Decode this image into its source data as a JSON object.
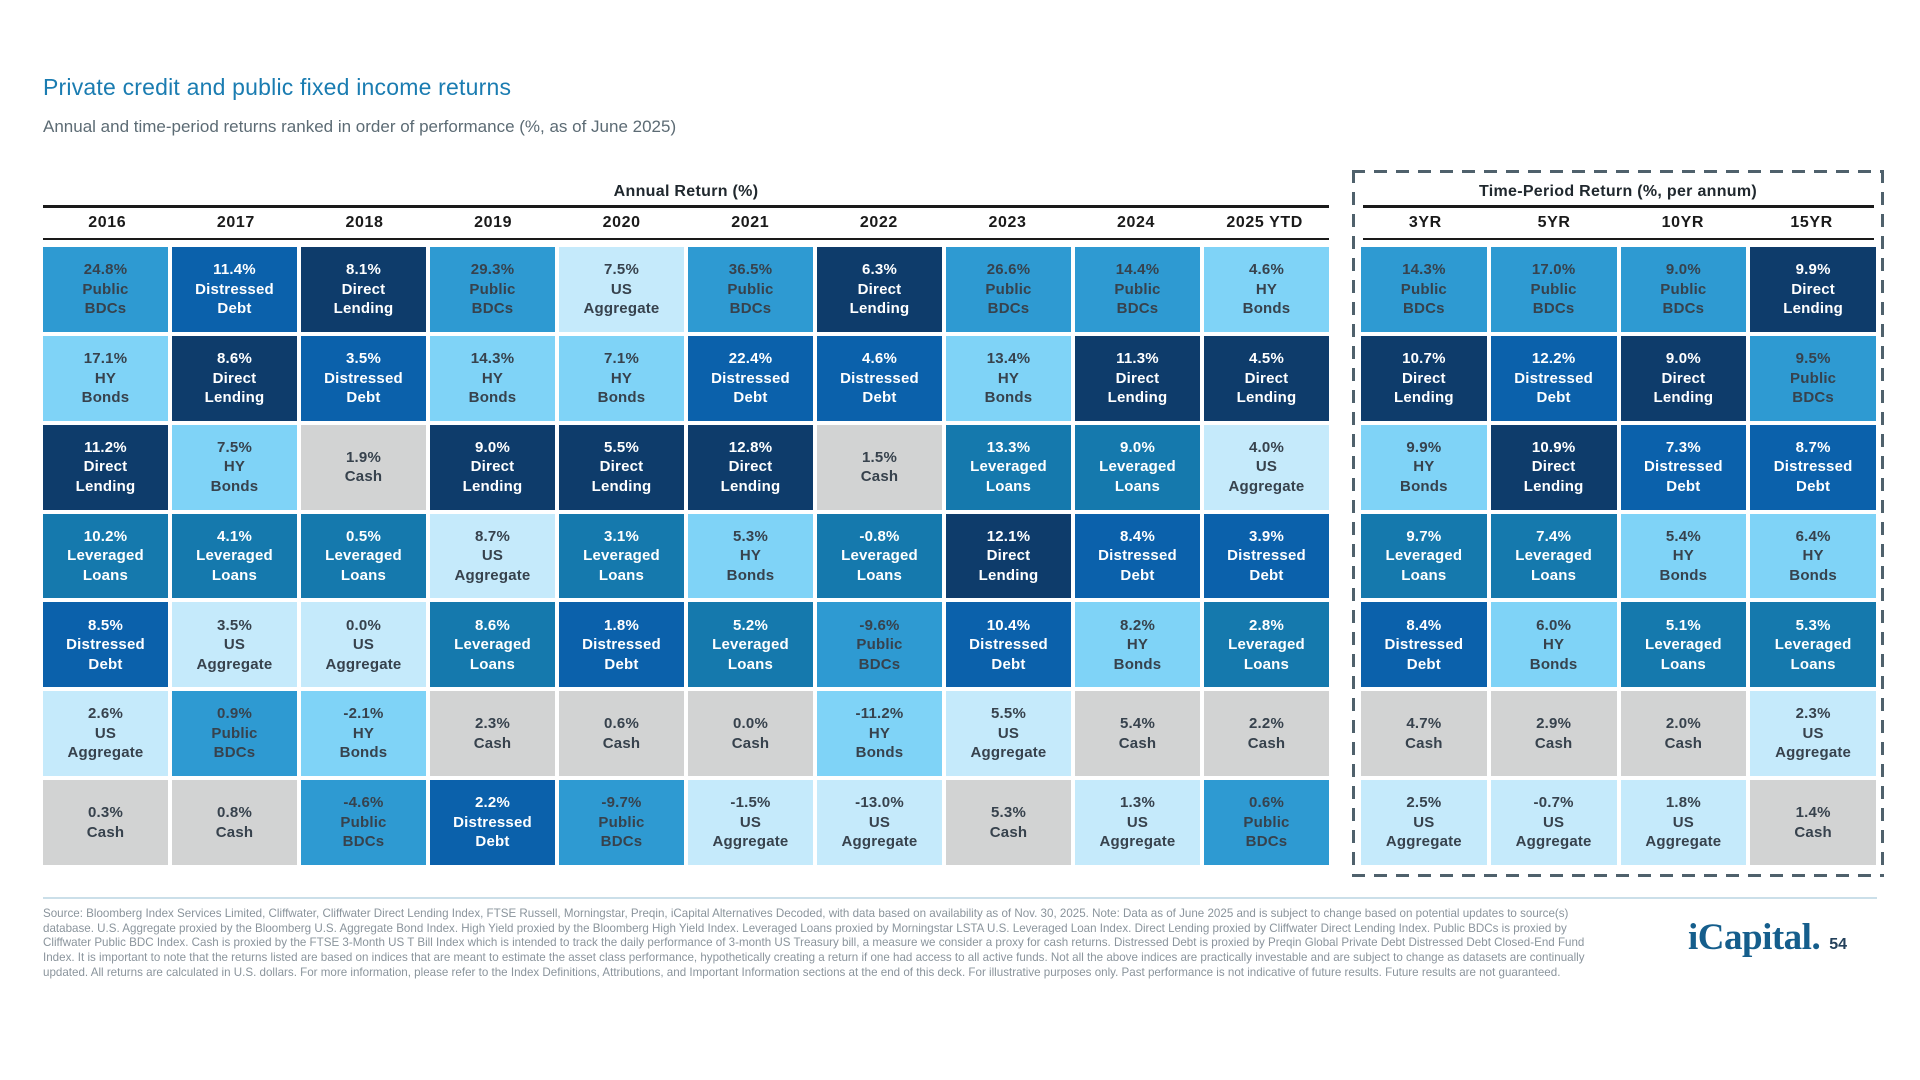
{
  "page": {
    "title": "Private credit and public fixed income returns",
    "subtitle": "Annual and time-period returns ranked in order of performance (%, as of June 2025)",
    "logo_text": "iCapital.",
    "page_number": "54",
    "footnote_lines": [
      "Source: Bloomberg Index Services Limited, Cliffwater, Cliffwater Direct Lending Index, FTSE Russell, Morningstar, Preqin, iCapital Alternatives Decoded, with data based on availability as of Nov. 30, 2025. Note: Data as of June 2025 and is subject to change based on potential updates to source(s)",
      "database. U.S. Aggregate proxied by the Bloomberg U.S. Aggregate Bond Index. High Yield proxied by the Bloomberg High Yield Index. Leveraged Loans proxied by Morningstar LSTA U.S. Leveraged Loan Index. Direct Lending proxied by Cliffwater Direct Lending Index. Public BDCs is proxied by",
      "Cliffwater Public BDC Index. Cash is proxied by the FTSE 3-Month US T Bill Index which is intended to track the daily performance of 3-month US Treasury bill, a measure we consider a proxy for cash returns. Distressed Debt is proxied by Preqin Global Private Debt Distressed Debt Closed-End Fund",
      "Index. It is important to note that the returns listed are based on indices that are meant to estimate the asset class performance, hypothetically creating a return if one had access to all active funds. Not all the above indices are practically investable and are subject to change as datasets are continually",
      "updated. All returns are calculated in U.S. dollars. For more information, please refer to the Index Definitions, Attributions, and Important Information sections at the end of this deck. For illustrative purposes only. Past performance is not indicative of future results. Future results are not guaranteed."
    ]
  },
  "chart_data": {
    "type": "table",
    "subtype": "ranked-return-quilt",
    "unit": "percent",
    "as_of": "June 2025",
    "asset_colors": {
      "public-bdcs": {
        "label": "Public BDCs",
        "bg": "#2E9AD2",
        "fg": "#37424D"
      },
      "hy-bonds": {
        "label": "HY Bonds",
        "bg": "#7FD3F7",
        "fg": "#37424D"
      },
      "direct-lending": {
        "label": "Direct Lending",
        "bg": "#0E3C6B",
        "fg": "#FFFFFF"
      },
      "distressed-debt": {
        "label": "Distressed Debt",
        "bg": "#0B61AB",
        "fg": "#FFFFFF"
      },
      "leveraged-loans": {
        "label": "Leveraged Loans",
        "bg": "#1579AD",
        "fg": "#FFFFFF"
      },
      "us-aggregate": {
        "label": "US Aggregate",
        "bg": "#C5EAFB",
        "fg": "#37424D"
      },
      "cash": {
        "label": "Cash",
        "bg": "#D2D3D3",
        "fg": "#37424D"
      }
    },
    "sections": [
      {
        "id": "annual",
        "title": "Annual Return (%)",
        "columns": [
          {
            "label": "2016",
            "ranking": [
              {
                "v": 24.8,
                "a": "public-bdcs"
              },
              {
                "v": 17.1,
                "a": "hy-bonds"
              },
              {
                "v": 11.2,
                "a": "direct-lending"
              },
              {
                "v": 10.2,
                "a": "leveraged-loans"
              },
              {
                "v": 8.5,
                "a": "distressed-debt"
              },
              {
                "v": 2.6,
                "a": "us-aggregate"
              },
              {
                "v": 0.3,
                "a": "cash"
              }
            ]
          },
          {
            "label": "2017",
            "ranking": [
              {
                "v": 11.4,
                "a": "distressed-debt"
              },
              {
                "v": 8.6,
                "a": "direct-lending"
              },
              {
                "v": 7.5,
                "a": "hy-bonds"
              },
              {
                "v": 4.1,
                "a": "leveraged-loans"
              },
              {
                "v": 3.5,
                "a": "us-aggregate"
              },
              {
                "v": 0.9,
                "a": "public-bdcs"
              },
              {
                "v": 0.8,
                "a": "cash"
              }
            ]
          },
          {
            "label": "2018",
            "ranking": [
              {
                "v": 8.1,
                "a": "direct-lending"
              },
              {
                "v": 3.5,
                "a": "distressed-debt"
              },
              {
                "v": 1.9,
                "a": "cash"
              },
              {
                "v": 0.5,
                "a": "leveraged-loans"
              },
              {
                "v": 0.0,
                "a": "us-aggregate"
              },
              {
                "v": -2.1,
                "a": "hy-bonds"
              },
              {
                "v": -4.6,
                "a": "public-bdcs"
              }
            ]
          },
          {
            "label": "2019",
            "ranking": [
              {
                "v": 29.3,
                "a": "public-bdcs"
              },
              {
                "v": 14.3,
                "a": "hy-bonds"
              },
              {
                "v": 9.0,
                "a": "direct-lending"
              },
              {
                "v": 8.7,
                "a": "us-aggregate"
              },
              {
                "v": 8.6,
                "a": "leveraged-loans"
              },
              {
                "v": 2.3,
                "a": "cash"
              },
              {
                "v": 2.2,
                "a": "distressed-debt"
              }
            ]
          },
          {
            "label": "2020",
            "ranking": [
              {
                "v": 7.5,
                "a": "us-aggregate"
              },
              {
                "v": 7.1,
                "a": "hy-bonds"
              },
              {
                "v": 5.5,
                "a": "direct-lending"
              },
              {
                "v": 3.1,
                "a": "leveraged-loans"
              },
              {
                "v": 1.8,
                "a": "distressed-debt"
              },
              {
                "v": 0.6,
                "a": "cash"
              },
              {
                "v": -9.7,
                "a": "public-bdcs"
              }
            ]
          },
          {
            "label": "2021",
            "ranking": [
              {
                "v": 36.5,
                "a": "public-bdcs"
              },
              {
                "v": 22.4,
                "a": "distressed-debt"
              },
              {
                "v": 12.8,
                "a": "direct-lending"
              },
              {
                "v": 5.3,
                "a": "hy-bonds"
              },
              {
                "v": 5.2,
                "a": "leveraged-loans"
              },
              {
                "v": 0.0,
                "a": "cash"
              },
              {
                "v": -1.5,
                "a": "us-aggregate"
              }
            ]
          },
          {
            "label": "2022",
            "ranking": [
              {
                "v": 6.3,
                "a": "direct-lending"
              },
              {
                "v": 4.6,
                "a": "distressed-debt"
              },
              {
                "v": 1.5,
                "a": "cash"
              },
              {
                "v": -0.8,
                "a": "leveraged-loans"
              },
              {
                "v": -9.6,
                "a": "public-bdcs"
              },
              {
                "v": -11.2,
                "a": "hy-bonds"
              },
              {
                "v": -13.0,
                "a": "us-aggregate"
              }
            ]
          },
          {
            "label": "2023",
            "ranking": [
              {
                "v": 26.6,
                "a": "public-bdcs"
              },
              {
                "v": 13.4,
                "a": "hy-bonds"
              },
              {
                "v": 13.3,
                "a": "leveraged-loans"
              },
              {
                "v": 12.1,
                "a": "direct-lending"
              },
              {
                "v": 10.4,
                "a": "distressed-debt"
              },
              {
                "v": 5.5,
                "a": "us-aggregate"
              },
              {
                "v": 5.3,
                "a": "cash"
              }
            ]
          },
          {
            "label": "2024",
            "ranking": [
              {
                "v": 14.4,
                "a": "public-bdcs"
              },
              {
                "v": 11.3,
                "a": "direct-lending"
              },
              {
                "v": 9.0,
                "a": "leveraged-loans"
              },
              {
                "v": 8.4,
                "a": "distressed-debt"
              },
              {
                "v": 8.2,
                "a": "hy-bonds"
              },
              {
                "v": 5.4,
                "a": "cash"
              },
              {
                "v": 1.3,
                "a": "us-aggregate"
              }
            ]
          },
          {
            "label": "2025 YTD",
            "ranking": [
              {
                "v": 4.6,
                "a": "hy-bonds"
              },
              {
                "v": 4.5,
                "a": "direct-lending"
              },
              {
                "v": 4.0,
                "a": "us-aggregate"
              },
              {
                "v": 3.9,
                "a": "distressed-debt"
              },
              {
                "v": 2.8,
                "a": "leveraged-loans"
              },
              {
                "v": 2.2,
                "a": "cash"
              },
              {
                "v": 0.6,
                "a": "public-bdcs"
              }
            ]
          }
        ]
      },
      {
        "id": "time_period",
        "title": "Time-Period Return (%, per annum)",
        "columns": [
          {
            "label": "3YR",
            "ranking": [
              {
                "v": 14.3,
                "a": "public-bdcs"
              },
              {
                "v": 10.7,
                "a": "direct-lending"
              },
              {
                "v": 9.9,
                "a": "hy-bonds"
              },
              {
                "v": 9.7,
                "a": "leveraged-loans"
              },
              {
                "v": 8.4,
                "a": "distressed-debt"
              },
              {
                "v": 4.7,
                "a": "cash"
              },
              {
                "v": 2.5,
                "a": "us-aggregate"
              }
            ]
          },
          {
            "label": "5YR",
            "ranking": [
              {
                "v": 17.0,
                "a": "public-bdcs"
              },
              {
                "v": 12.2,
                "a": "distressed-debt"
              },
              {
                "v": 10.9,
                "a": "direct-lending"
              },
              {
                "v": 7.4,
                "a": "leveraged-loans"
              },
              {
                "v": 6.0,
                "a": "hy-bonds"
              },
              {
                "v": 2.9,
                "a": "cash"
              },
              {
                "v": -0.7,
                "a": "us-aggregate"
              }
            ]
          },
          {
            "label": "10YR",
            "ranking": [
              {
                "v": 9.0,
                "a": "public-bdcs"
              },
              {
                "v": 9.0,
                "a": "direct-lending"
              },
              {
                "v": 7.3,
                "a": "distressed-debt"
              },
              {
                "v": 5.4,
                "a": "hy-bonds"
              },
              {
                "v": 5.1,
                "a": "leveraged-loans"
              },
              {
                "v": 2.0,
                "a": "cash"
              },
              {
                "v": 1.8,
                "a": "us-aggregate"
              }
            ]
          },
          {
            "label": "15YR",
            "ranking": [
              {
                "v": 9.9,
                "a": "direct-lending"
              },
              {
                "v": 9.5,
                "a": "public-bdcs"
              },
              {
                "v": 8.7,
                "a": "distressed-debt"
              },
              {
                "v": 6.4,
                "a": "hy-bonds"
              },
              {
                "v": 5.3,
                "a": "leveraged-loans"
              },
              {
                "v": 2.3,
                "a": "us-aggregate"
              },
              {
                "v": 1.4,
                "a": "cash"
              }
            ]
          }
        ]
      }
    ]
  }
}
